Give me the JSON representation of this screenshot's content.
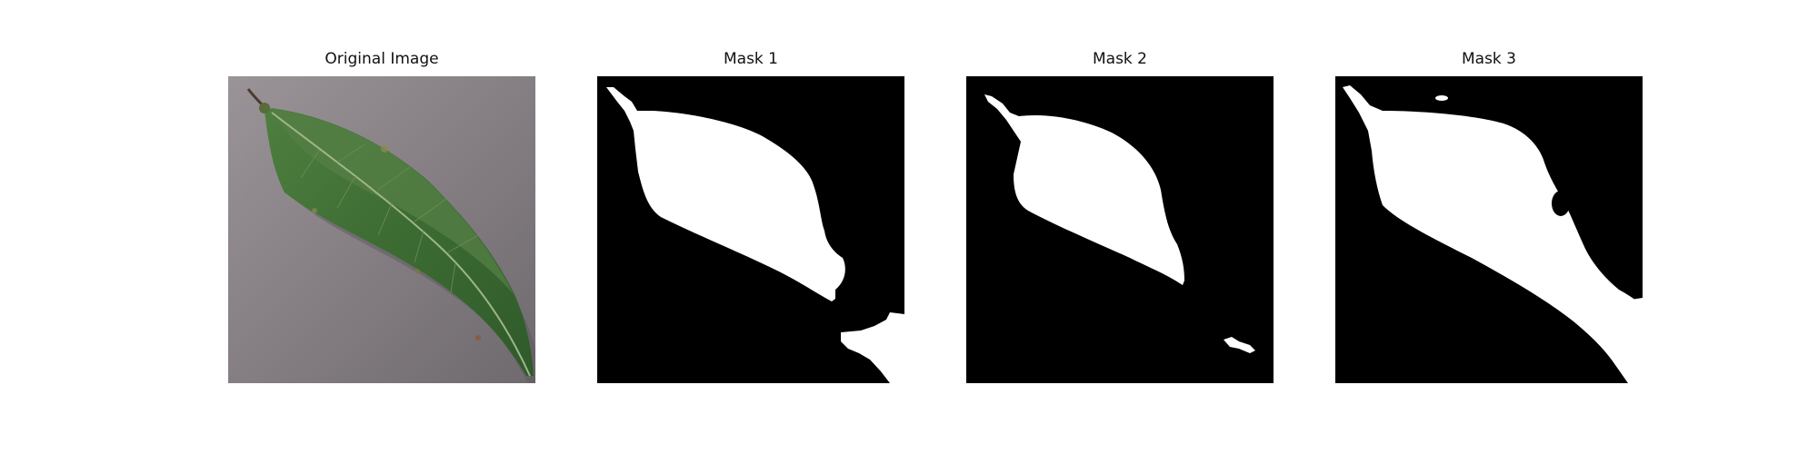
{
  "figure": {
    "panels": [
      {
        "title": "Original Image"
      },
      {
        "title": "Mask 1"
      },
      {
        "title": "Mask 2"
      },
      {
        "title": "Mask 3"
      }
    ]
  },
  "colors": {
    "background": "#ffffff",
    "mask_foreground": "#ffffff",
    "mask_background": "#000000",
    "surface": "#8a8489",
    "leaf": "#3f6f34"
  }
}
